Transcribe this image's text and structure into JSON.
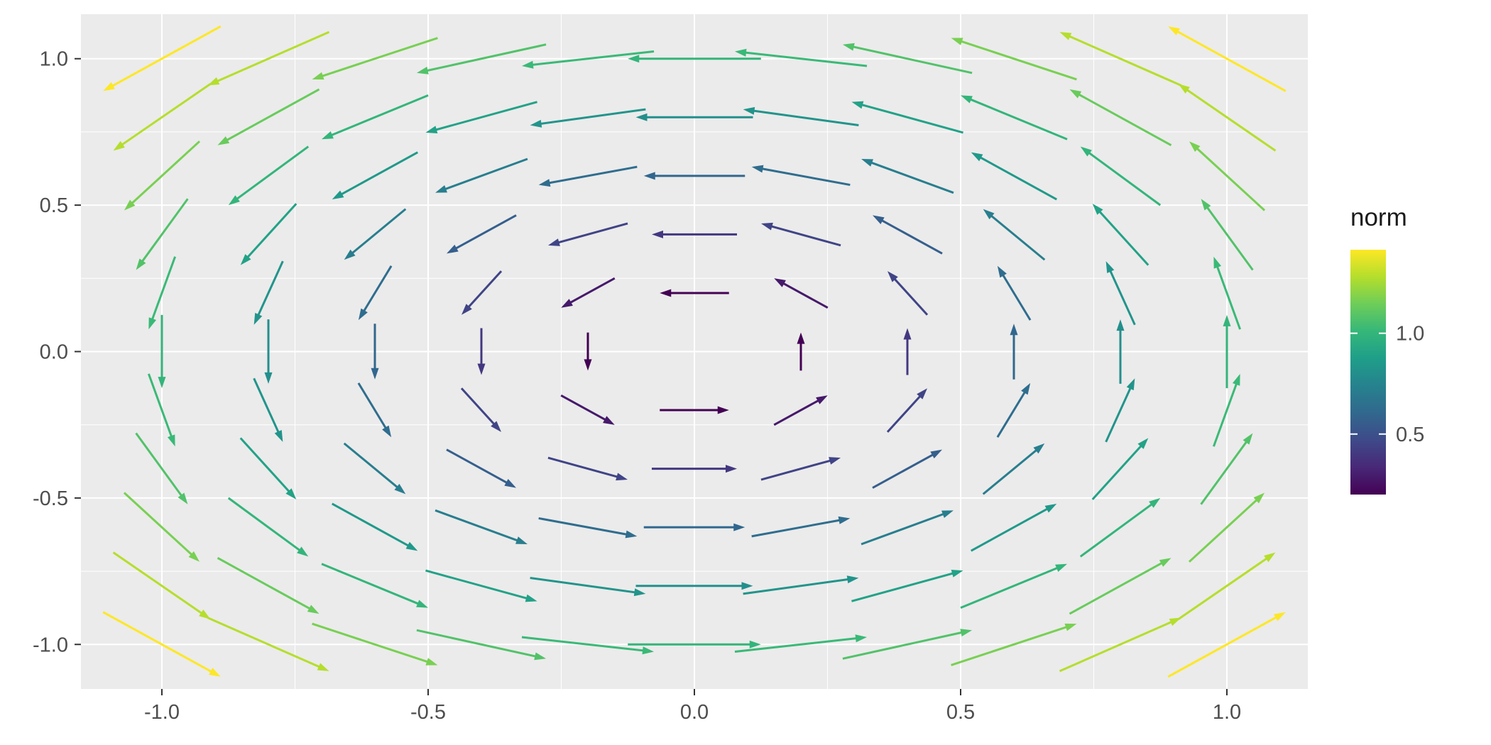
{
  "chart_data": {
    "type": "quiver",
    "title": "",
    "xlabel": "",
    "ylabel": "",
    "description": "Counterclockwise rotational vector field (u = -y, v = x) on a regular grid, arrows colored by vector norm with viridis scale, ggplot2 style",
    "x_range": [
      -1.152,
      1.152
    ],
    "y_range": [
      -1.152,
      1.152
    ],
    "x_ticks": {
      "values": [
        -1.0,
        -0.5,
        0.0,
        0.5,
        1.0
      ],
      "labels": [
        "-1.0",
        "-0.5",
        "0.0",
        "0.5",
        "1.0"
      ]
    },
    "y_ticks": {
      "values": [
        -1.0,
        -0.5,
        0.0,
        0.5,
        1.0
      ],
      "labels": [
        "-1.0",
        "-0.5",
        "0.0",
        "0.5",
        "1.0"
      ]
    },
    "minor_grid_x": [
      -0.75,
      -0.25,
      0.25,
      0.75
    ],
    "minor_grid_y": [
      -0.75,
      -0.25,
      0.25,
      0.75
    ],
    "grid": {
      "x_values": [
        -1.0,
        -0.8,
        -0.6,
        -0.4,
        -0.2,
        0.0,
        0.2,
        0.4,
        0.6,
        0.8,
        1.0
      ],
      "y_values": [
        -1.0,
        -0.8,
        -0.6,
        -0.4,
        -0.2,
        0.0,
        0.2,
        0.4,
        0.6,
        0.8,
        1.0
      ]
    },
    "field": {
      "u_formula": "-y",
      "v_formula": "x"
    },
    "norm": {
      "min": 0.2,
      "max": 1.4142
    },
    "arrow_style": {
      "length_base": 0.1,
      "length_per_norm": 0.15,
      "stroke_width": 3
    },
    "legend": {
      "title": "norm",
      "ticks": [
        {
          "value": 1.0,
          "label": "1.0"
        },
        {
          "value": 0.5,
          "label": "0.5"
        }
      ]
    },
    "colors": {
      "panel_bg": "#EBEBEB",
      "grid_major": "#FFFFFF",
      "grid_minor": "#F5F5F5",
      "axis_text": "#4D4D4D",
      "axis_tick": "#333333",
      "legend_title": "#1A1A1A",
      "viridis": [
        "#440154",
        "#482878",
        "#3E4A89",
        "#31688E",
        "#26828E",
        "#1F9E89",
        "#35B779",
        "#6DCD59",
        "#B4DE2C",
        "#FDE725"
      ]
    },
    "legend_position": "right",
    "grid_on": true
  }
}
